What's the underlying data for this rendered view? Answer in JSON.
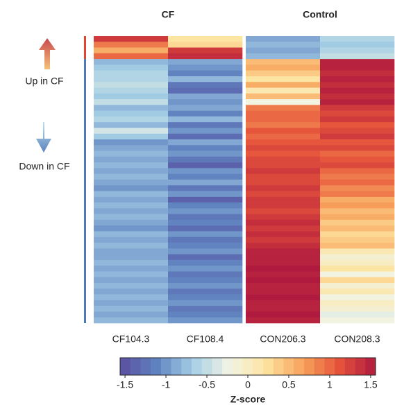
{
  "chart_data": {
    "type": "heatmap",
    "groups": [
      "CF",
      "Control"
    ],
    "columns": [
      "CF104.3",
      "CF108.4",
      "CON206.3",
      "CON208.3"
    ],
    "row_groups": [
      {
        "name": "Up in CF",
        "color": "#e0452f",
        "size": 4
      },
      {
        "name": "Down in CF",
        "color": "#4a78b8",
        "size": 46
      }
    ],
    "values": [
      [
        1.3,
        0.2,
        -0.9,
        -0.6
      ],
      [
        0.9,
        0.3,
        -0.8,
        -0.7
      ],
      [
        0.6,
        1.3,
        -0.9,
        -0.6
      ],
      [
        1.0,
        1.4,
        -0.8,
        -0.5
      ],
      [
        -0.8,
        -0.9,
        0.5,
        1.5
      ],
      [
        -0.7,
        -1.0,
        0.6,
        1.5
      ],
      [
        -0.6,
        -1.1,
        0.4,
        1.4
      ],
      [
        -0.6,
        -0.8,
        0.2,
        1.5
      ],
      [
        -0.5,
        -1.2,
        0.6,
        1.4
      ],
      [
        -0.6,
        -1.3,
        0.1,
        1.5
      ],
      [
        -0.7,
        -0.9,
        0.5,
        1.4
      ],
      [
        -0.5,
        -1.0,
        -0.2,
        1.5
      ],
      [
        -0.8,
        -0.9,
        0.9,
        1.3
      ],
      [
        -0.7,
        -1.1,
        1.0,
        1.2
      ],
      [
        -0.6,
        -0.8,
        1.0,
        1.3
      ],
      [
        -0.8,
        -1.2,
        0.9,
        1.1
      ],
      [
        -0.4,
        -1.0,
        1.1,
        1.2
      ],
      [
        -0.7,
        -1.3,
        1.0,
        1.3
      ],
      [
        -1.0,
        -0.9,
        1.1,
        1.1
      ],
      [
        -0.9,
        -1.1,
        1.2,
        1.2
      ],
      [
        -0.8,
        -1.0,
        1.1,
        1.0
      ],
      [
        -0.9,
        -1.2,
        1.2,
        1.1
      ],
      [
        -0.8,
        -1.4,
        1.2,
        1.2
      ],
      [
        -0.9,
        -1.0,
        1.3,
        1.0
      ],
      [
        -0.8,
        -1.1,
        1.2,
        0.9
      ],
      [
        -0.9,
        -0.9,
        1.2,
        1.0
      ],
      [
        -1.0,
        -1.2,
        1.3,
        0.8
      ],
      [
        -0.8,
        -1.0,
        1.2,
        0.9
      ],
      [
        -0.9,
        -1.4,
        1.3,
        0.6
      ],
      [
        -0.8,
        -1.1,
        1.3,
        0.7
      ],
      [
        -0.9,
        -1.0,
        1.2,
        0.5
      ],
      [
        -0.8,
        -1.2,
        1.3,
        0.6
      ],
      [
        -0.9,
        -1.1,
        1.4,
        0.4
      ],
      [
        -1.0,
        -1.3,
        1.3,
        0.5
      ],
      [
        -0.8,
        -1.0,
        1.4,
        0.3
      ],
      [
        -0.9,
        -1.2,
        1.3,
        0.4
      ],
      [
        -0.8,
        -1.1,
        1.4,
        0.5
      ],
      [
        -0.9,
        -1.0,
        1.5,
        0.1
      ],
      [
        -0.9,
        -1.3,
        1.5,
        -0.1
      ],
      [
        -0.8,
        -1.1,
        1.5,
        0.0
      ],
      [
        -0.9,
        -1.0,
        1.6,
        0.2
      ],
      [
        -0.8,
        -1.2,
        1.5,
        -0.2
      ],
      [
        -0.9,
        -1.1,
        1.6,
        0.3
      ],
      [
        -0.8,
        -1.0,
        1.5,
        -0.1
      ],
      [
        -0.9,
        -1.2,
        1.5,
        0.1
      ],
      [
        -0.8,
        -1.1,
        1.6,
        -0.2
      ],
      [
        -0.9,
        -1.0,
        1.5,
        0.0
      ],
      [
        -0.8,
        -1.2,
        1.5,
        -0.1
      ],
      [
        -0.9,
        -1.1,
        1.6,
        -0.3
      ],
      [
        -0.8,
        -1.0,
        1.5,
        -0.2
      ]
    ],
    "colormap": [
      "#5a4fa0",
      "#5f82c0",
      "#a6cfe6",
      "#f2f4e4",
      "#fde3a0",
      "#f7a35c",
      "#e5533c",
      "#b01a3e"
    ],
    "clim": [
      -1.56,
      1.56
    ],
    "cticks": [
      -1.5,
      -1,
      -0.5,
      0,
      0.5,
      1,
      1.5
    ],
    "colorbar_label": "Z-score"
  }
}
